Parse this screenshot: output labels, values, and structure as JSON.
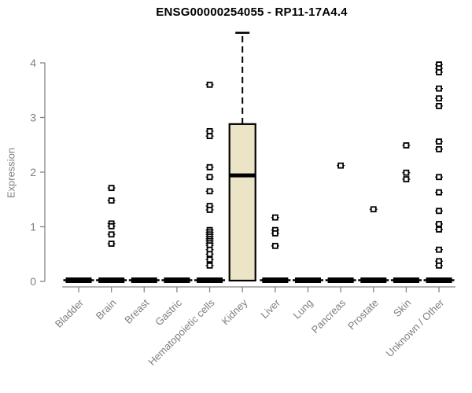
{
  "chart_data": {
    "type": "boxplot",
    "title": "ENSG00000254055 - RP11-17A4.4",
    "xlabel": "",
    "ylabel": "Expression",
    "ylim": [
      0,
      4.6
    ],
    "yticks": [
      0,
      1,
      2,
      3,
      4
    ],
    "grid": false,
    "legend": null,
    "categories": [
      "Bladder",
      "Brain",
      "Breast",
      "Gastric",
      "Hematopoietic cells",
      "Kidney",
      "Liver",
      "Lung",
      "Pancreas",
      "Prostate",
      "Skin",
      "Unknown / Other"
    ],
    "boxes": [
      {
        "category": "Bladder",
        "low": 0,
        "q1": 0,
        "median": 0,
        "q3": 0,
        "high": 0,
        "outliers": []
      },
      {
        "category": "Brain",
        "low": 0,
        "q1": 0,
        "median": 0,
        "q3": 0,
        "high": 0,
        "outliers": [
          1.71,
          1.48,
          1.06,
          1.01,
          0.86,
          0.69
        ]
      },
      {
        "category": "Breast",
        "low": 0,
        "q1": 0,
        "median": 0,
        "q3": 0,
        "high": 0,
        "outliers": []
      },
      {
        "category": "Gastric",
        "low": 0,
        "q1": 0,
        "median": 0,
        "q3": 0,
        "high": 0,
        "outliers": []
      },
      {
        "category": "Hematopoietic cells",
        "low": 0,
        "q1": 0,
        "median": 0,
        "q3": 0,
        "high": 0,
        "outliers": [
          3.6,
          2.75,
          2.66,
          2.09,
          1.91,
          1.65,
          1.38,
          1.31,
          0.94,
          0.9,
          0.86,
          0.82,
          0.78,
          0.74,
          0.7,
          0.66,
          0.58,
          0.5,
          0.4,
          0.29
        ]
      },
      {
        "category": "Kidney",
        "low": 0,
        "q1": 0,
        "median": 1.94,
        "q3": 2.88,
        "high": 4.55,
        "outliers": []
      },
      {
        "category": "Liver",
        "low": 0,
        "q1": 0,
        "median": 0,
        "q3": 0,
        "high": 0,
        "outliers": [
          1.17,
          0.94,
          0.88,
          0.65
        ]
      },
      {
        "category": "Lung",
        "low": 0,
        "q1": 0,
        "median": 0,
        "q3": 0,
        "high": 0,
        "outliers": []
      },
      {
        "category": "Pancreas",
        "low": 0,
        "q1": 0,
        "median": 0,
        "q3": 0,
        "high": 0,
        "outliers": [
          2.12
        ]
      },
      {
        "category": "Prostate",
        "low": 0,
        "q1": 0,
        "median": 0,
        "q3": 0,
        "high": 0,
        "outliers": [
          1.32
        ]
      },
      {
        "category": "Skin",
        "low": 0,
        "q1": 0,
        "median": 0,
        "q3": 0,
        "high": 0,
        "outliers": [
          2.49,
          1.99,
          1.87
        ]
      },
      {
        "category": "Unknown / Other",
        "low": 0,
        "q1": 0,
        "median": 0,
        "q3": 0,
        "high": 0,
        "outliers": [
          3.97,
          3.9,
          3.83,
          3.53,
          3.35,
          3.21,
          2.56,
          2.42,
          1.91,
          1.63,
          1.29,
          1.05,
          0.95,
          0.58,
          0.37,
          0.29
        ]
      }
    ],
    "colors": {
      "box_fill": "#ECE4C7",
      "box_stroke": "#000000",
      "median": "#000000",
      "point_stroke": "#000000",
      "point_fill": "#FFFFFF",
      "axis": "#858585",
      "tick_label": "#7F7F7F",
      "title": "#000000",
      "background": "#FFFFFF"
    }
  }
}
